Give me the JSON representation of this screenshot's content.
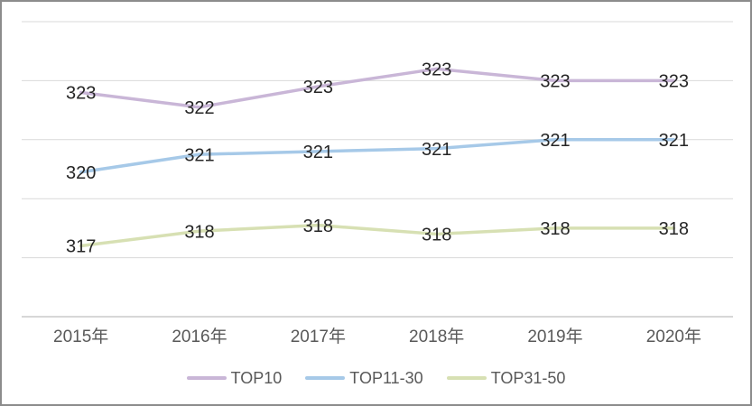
{
  "chart_data": {
    "type": "line",
    "title": "",
    "xlabel": "",
    "ylabel": "",
    "categories": [
      "2015年",
      "2016年",
      "2017年",
      "2018年",
      "2019年",
      "2020年"
    ],
    "series": [
      {
        "name": "TOP10",
        "color": "#c9b6d7",
        "values": [
          323,
          322,
          323,
          323,
          323,
          323
        ],
        "plot_values": [
          322.6,
          322.1,
          322.8,
          323.4,
          323.0,
          323.0
        ]
      },
      {
        "name": "TOP11-30",
        "color": "#a6c9e8",
        "values": [
          320,
          321,
          321,
          321,
          321,
          321
        ],
        "plot_values": [
          319.9,
          320.5,
          320.6,
          320.7,
          321.0,
          321.0
        ]
      },
      {
        "name": "TOP31-50",
        "color": "#d7e0b3",
        "values": [
          317,
          318,
          318,
          318,
          318,
          318
        ],
        "plot_values": [
          317.4,
          317.9,
          318.1,
          317.8,
          318.0,
          318.0
        ]
      }
    ],
    "ylim": [
      315,
      325
    ],
    "gridline_step": 2,
    "grid": "horizontal",
    "y_axis_labels_visible": false,
    "legend_position": "bottom",
    "data_label_position": "center",
    "colors": {
      "grid": "#d9d9d9",
      "axis_line": "#bfbfbf",
      "data_label": "#262626",
      "axis_label": "#595959",
      "legend_text": "#595959",
      "frame_border": "#8c8c8c",
      "background": "#ffffff"
    }
  }
}
